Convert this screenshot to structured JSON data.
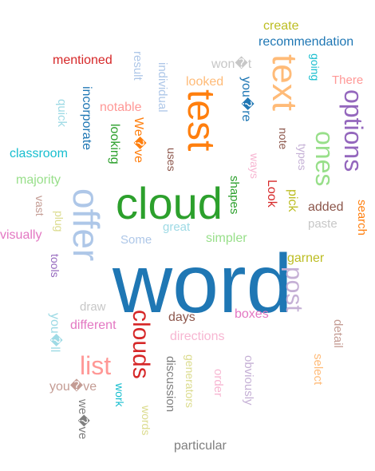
{
  "words": [
    {
      "text": "word",
      "color": "#1f77b4"
    },
    {
      "text": "cloud",
      "color": "#2ca02c"
    },
    {
      "text": "test",
      "color": "#ff7f0e"
    },
    {
      "text": "offer",
      "color": "#aec7e8"
    },
    {
      "text": "text",
      "color": "#ffbb78"
    },
    {
      "text": "options",
      "color": "#9467bd"
    },
    {
      "text": "ones",
      "color": "#98df8a"
    },
    {
      "text": "clouds",
      "color": "#d62728"
    },
    {
      "text": "post",
      "color": "#c5b0d5"
    },
    {
      "text": "list",
      "color": "#ff9896"
    },
    {
      "text": "create",
      "color": "#bcbd22"
    },
    {
      "text": "recommendation",
      "color": "#1f77b4"
    },
    {
      "text": "mentioned",
      "color": "#d62728"
    },
    {
      "text": "result",
      "color": "#aec7e8"
    },
    {
      "text": "individual",
      "color": "#aec7e8"
    },
    {
      "text": "won�t",
      "color": "#c7c7c7"
    },
    {
      "text": "going",
      "color": "#17becf"
    },
    {
      "text": "There",
      "color": "#ff9896"
    },
    {
      "text": "looked",
      "color": "#ffbb78"
    },
    {
      "text": "you�re",
      "color": "#1f77b4"
    },
    {
      "text": "incorporate",
      "color": "#1f77b4"
    },
    {
      "text": "notable",
      "color": "#ff9896"
    },
    {
      "text": "quick",
      "color": "#9edae5"
    },
    {
      "text": "We�ve",
      "color": "#ff7f0e"
    },
    {
      "text": "looking",
      "color": "#2ca02c"
    },
    {
      "text": "note",
      "color": "#8c564b"
    },
    {
      "text": "types",
      "color": "#c5b0d5"
    },
    {
      "text": "classroom",
      "color": "#17becf"
    },
    {
      "text": "uses",
      "color": "#8c564b"
    },
    {
      "text": "ways",
      "color": "#f7b6d2"
    },
    {
      "text": "majority",
      "color": "#98df8a"
    },
    {
      "text": "shapes",
      "color": "#2ca02c"
    },
    {
      "text": "Look",
      "color": "#d62728"
    },
    {
      "text": "pick",
      "color": "#bcbd22"
    },
    {
      "text": "search",
      "color": "#ff7f0e"
    },
    {
      "text": "vast",
      "color": "#c49c94"
    },
    {
      "text": "plug",
      "color": "#dbdb8d"
    },
    {
      "text": "great",
      "color": "#9edae5"
    },
    {
      "text": "added",
      "color": "#8c564b"
    },
    {
      "text": "paste",
      "color": "#c7c7c7"
    },
    {
      "text": "visually",
      "color": "#e377c2"
    },
    {
      "text": "Some",
      "color": "#aec7e8"
    },
    {
      "text": "simpler",
      "color": "#98df8a"
    },
    {
      "text": "tools",
      "color": "#9467bd"
    },
    {
      "text": "garner",
      "color": "#bcbd22"
    },
    {
      "text": "draw",
      "color": "#c7c7c7"
    },
    {
      "text": "days",
      "color": "#8c564b"
    },
    {
      "text": "boxes",
      "color": "#e377c2"
    },
    {
      "text": "you�ll",
      "color": "#9edae5"
    },
    {
      "text": "different",
      "color": "#e377c2"
    },
    {
      "text": "directions",
      "color": "#f7b6d2"
    },
    {
      "text": "detail",
      "color": "#c49c94"
    },
    {
      "text": "select",
      "color": "#ffbb78"
    },
    {
      "text": "discussion",
      "color": "#7f7f7f"
    },
    {
      "text": "generators",
      "color": "#dbdb8d"
    },
    {
      "text": "order",
      "color": "#f7b6d2"
    },
    {
      "text": "obviously",
      "color": "#c5b0d5"
    },
    {
      "text": "you�ve",
      "color": "#c49c94"
    },
    {
      "text": "work",
      "color": "#17becf"
    },
    {
      "text": "words",
      "color": "#dbdb8d"
    },
    {
      "text": "we�ve",
      "color": "#7f7f7f"
    },
    {
      "text": "particular",
      "color": "#7f7f7f"
    }
  ]
}
